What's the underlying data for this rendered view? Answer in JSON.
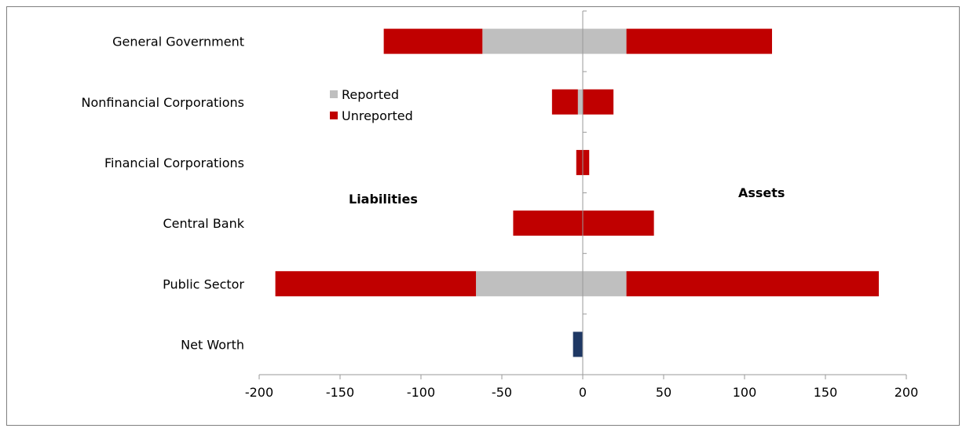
{
  "chart_data": {
    "type": "bar",
    "orientation": "horizontal",
    "stacked": true,
    "categories": [
      "General Government",
      "Nonfinancial Corporations",
      "Financial Corporations",
      "Central Bank",
      "Public Sector",
      "Net Worth"
    ],
    "series": [
      {
        "name": "Reported",
        "color": "#BFBFBF",
        "liabilities": [
          -62,
          -3,
          0,
          0,
          -66,
          0
        ],
        "assets": [
          27,
          0,
          0,
          0,
          27,
          0
        ]
      },
      {
        "name": "Unreported",
        "color": "#C00000",
        "liabilities": [
          -61,
          -16,
          -4,
          -43,
          -124,
          0
        ],
        "assets": [
          90,
          19,
          4,
          44,
          156,
          0
        ]
      }
    ],
    "net_worth": {
      "value": -6,
      "color": "#1F3864"
    },
    "xlim": [
      -200,
      200
    ],
    "xticks": [
      -200,
      -150,
      -100,
      -50,
      0,
      50,
      100,
      150,
      200
    ],
    "annotations": {
      "left": "Liabilities",
      "right": "Assets"
    },
    "legend": {
      "placement": "upper-left",
      "items": [
        "Reported",
        "Unreported"
      ]
    },
    "grid": false
  }
}
